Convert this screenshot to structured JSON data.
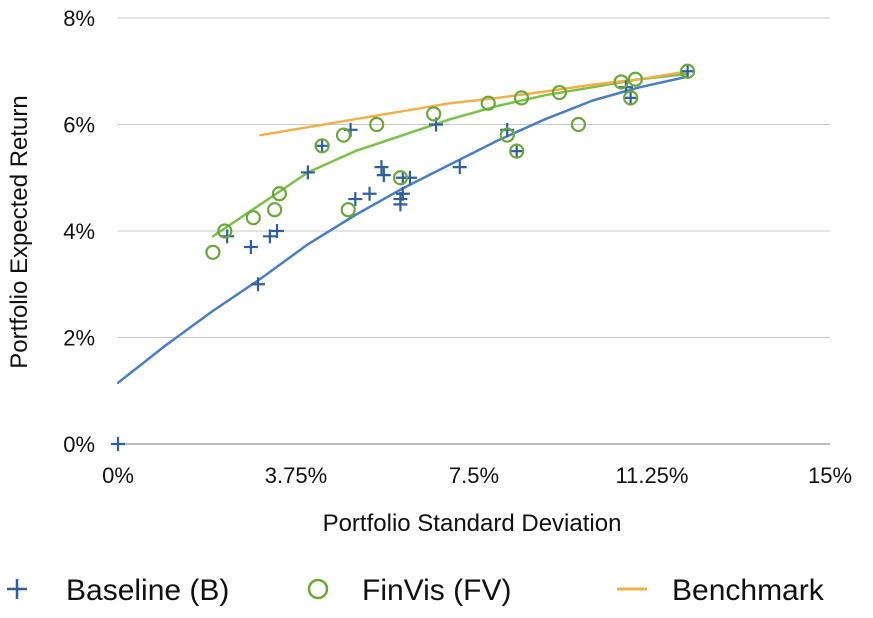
{
  "chart_data": {
    "type": "scatter",
    "xlabel": "Portfolio Standard Deviation",
    "ylabel": "Portfolio Expected Return",
    "xlim": [
      0,
      15
    ],
    "ylim": [
      0,
      8
    ],
    "x_ticks": [
      "0%",
      "3.75%",
      "7.5%",
      "11.25%",
      "15%"
    ],
    "x_tick_values": [
      0,
      3.75,
      7.5,
      11.25,
      15
    ],
    "y_ticks": [
      "0%",
      "2%",
      "4%",
      "6%",
      "8%"
    ],
    "y_tick_values": [
      0,
      2,
      4,
      6,
      8
    ],
    "grid": "horizontal",
    "legend_position": "bottom",
    "series": [
      {
        "name": "Baseline (B)",
        "marker": "plus",
        "color": "#2f5f9e",
        "points": [
          [
            0,
            0
          ],
          [
            2.3,
            3.9
          ],
          [
            2.8,
            3.7
          ],
          [
            2.95,
            3.0
          ],
          [
            3.2,
            3.9
          ],
          [
            3.35,
            4.0
          ],
          [
            4.0,
            5.1
          ],
          [
            4.3,
            5.6
          ],
          [
            4.9,
            5.9
          ],
          [
            5.0,
            4.6
          ],
          [
            5.3,
            4.7
          ],
          [
            5.55,
            5.2
          ],
          [
            5.6,
            5.05
          ],
          [
            5.95,
            4.5
          ],
          [
            5.95,
            4.6
          ],
          [
            6.0,
            4.7
          ],
          [
            6.0,
            5.0
          ],
          [
            6.15,
            5.0
          ],
          [
            6.7,
            6.0
          ],
          [
            7.2,
            5.2
          ],
          [
            8.2,
            5.9
          ],
          [
            8.4,
            5.5
          ],
          [
            10.7,
            6.7
          ],
          [
            10.8,
            6.5
          ],
          [
            12.0,
            7.0
          ]
        ]
      },
      {
        "name": "FinVis (FV)",
        "marker": "circle",
        "color": "#6aa63a",
        "points": [
          [
            2.0,
            3.6
          ],
          [
            2.25,
            4.0
          ],
          [
            2.85,
            4.25
          ],
          [
            3.3,
            4.4
          ],
          [
            3.4,
            4.7
          ],
          [
            4.3,
            5.6
          ],
          [
            4.75,
            5.8
          ],
          [
            4.85,
            4.4
          ],
          [
            5.45,
            6.0
          ],
          [
            5.95,
            5.0
          ],
          [
            6.65,
            6.2
          ],
          [
            7.8,
            6.4
          ],
          [
            8.2,
            5.8
          ],
          [
            8.4,
            5.5
          ],
          [
            8.5,
            6.5
          ],
          [
            9.3,
            6.6
          ],
          [
            9.7,
            6.0
          ],
          [
            10.6,
            6.8
          ],
          [
            10.8,
            6.5
          ],
          [
            10.9,
            6.85
          ],
          [
            12.0,
            7.0
          ]
        ]
      }
    ],
    "trendlines": [
      {
        "series": "Baseline (B)",
        "color": "#4a7ec2",
        "points": [
          [
            0,
            1.15
          ],
          [
            1,
            1.85
          ],
          [
            2,
            2.5
          ],
          [
            3,
            3.1
          ],
          [
            4,
            3.75
          ],
          [
            5,
            4.3
          ],
          [
            6,
            4.8
          ],
          [
            7,
            5.25
          ],
          [
            8,
            5.7
          ],
          [
            9,
            6.1
          ],
          [
            10,
            6.45
          ],
          [
            11,
            6.7
          ],
          [
            12,
            6.9
          ]
        ]
      },
      {
        "series": "FinVis (FV)",
        "color": "#7bc147",
        "points": [
          [
            2,
            3.9
          ],
          [
            3,
            4.5
          ],
          [
            4,
            5.1
          ],
          [
            5,
            5.5
          ],
          [
            6,
            5.8
          ],
          [
            7,
            6.1
          ],
          [
            8,
            6.35
          ],
          [
            9,
            6.55
          ],
          [
            10,
            6.7
          ],
          [
            11,
            6.85
          ],
          [
            12,
            6.95
          ]
        ]
      },
      {
        "series": "Benchmark",
        "color": "#f0b04a",
        "points": [
          [
            3,
            5.8
          ],
          [
            4,
            5.95
          ],
          [
            5,
            6.1
          ],
          [
            6,
            6.25
          ],
          [
            7,
            6.4
          ],
          [
            8,
            6.5
          ],
          [
            9,
            6.62
          ],
          [
            10,
            6.75
          ],
          [
            11,
            6.85
          ],
          [
            12,
            7.0
          ]
        ]
      }
    ],
    "legend": [
      {
        "label": "Baseline (B)",
        "symbol": "plus",
        "color": "#2f5f9e"
      },
      {
        "label": "FinVis (FV)",
        "symbol": "circle",
        "color": "#6aa63a"
      },
      {
        "label": "Benchmark",
        "symbol": "line",
        "color": "#f0b04a"
      }
    ]
  }
}
